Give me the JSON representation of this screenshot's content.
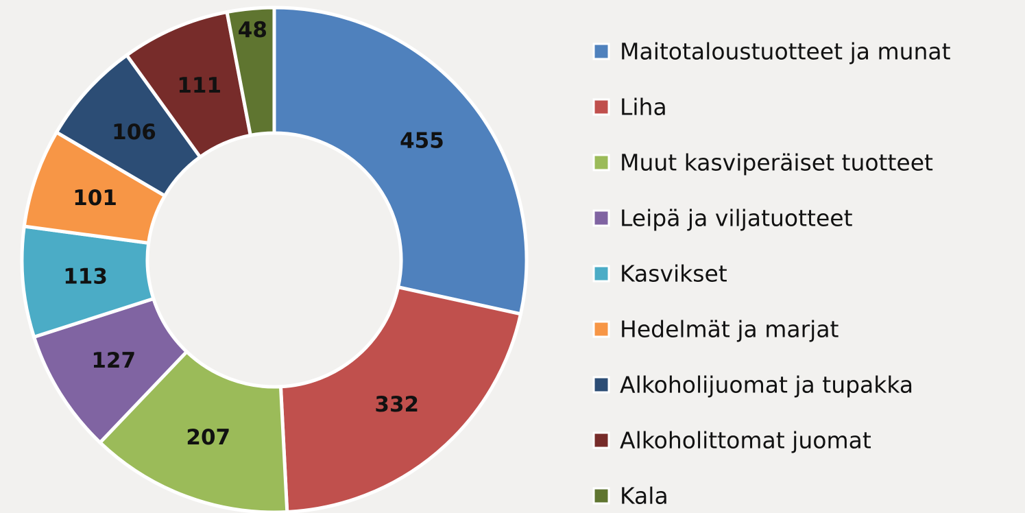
{
  "chart_data": {
    "type": "doughnut",
    "categories": [
      "Maitotaloustuotteet ja munat",
      "Liha",
      "Muut kasviperäiset tuotteet",
      "Leipä ja viljatuotteet",
      "Kasvikset",
      "Hedelmät ja marjat",
      "Alkoholijuomat ja tupakka",
      "Alkoholittomat juomat",
      "Kala"
    ],
    "values": [
      455,
      332,
      207,
      127,
      113,
      101,
      106,
      111,
      48
    ],
    "colors": [
      "#4f81bd",
      "#c0504d",
      "#9bbb59",
      "#8064a2",
      "#4bacc6",
      "#f79646",
      "#2c4d75",
      "#772c2a",
      "#5f7530"
    ],
    "legend": "right"
  }
}
